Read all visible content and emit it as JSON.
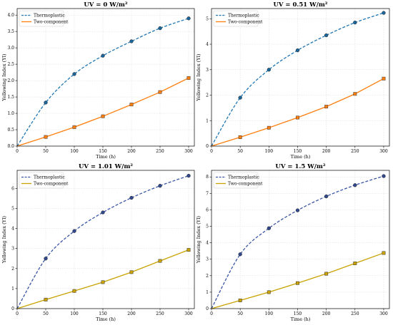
{
  "chart_data": [
    {
      "type": "line",
      "title": "UV = 0 W/m²",
      "xlabel": "Time (h)",
      "ylabel": "Yellowing Index (YI)",
      "xlim": [
        0,
        310
      ],
      "ylim": [
        0,
        4.2
      ],
      "xticks": [
        0,
        50,
        100,
        150,
        200,
        250,
        300
      ],
      "yticks": [
        0,
        0.5,
        1.0,
        1.5,
        2.0,
        2.5,
        3.0,
        3.5,
        4.0
      ],
      "ytick_labels": [
        "0.0",
        "0.5",
        "1.0",
        "1.5",
        "2.0",
        "2.5",
        "3.0",
        "3.5",
        "4.0"
      ],
      "legend": "top-left",
      "grid": true,
      "series": [
        {
          "name": "Thermoplastic",
          "color": "#1f77b4",
          "marker": "circle",
          "style": "dashed",
          "x": [
            0,
            50,
            100,
            150,
            200,
            250,
            300
          ],
          "values": [
            0,
            1.33,
            2.2,
            2.76,
            3.2,
            3.6,
            3.9
          ]
        },
        {
          "name": "Two-component",
          "color": "#ff7f0e",
          "marker": "square",
          "style": "solid",
          "x": [
            0,
            50,
            100,
            150,
            200,
            250,
            300
          ],
          "values": [
            0,
            0.28,
            0.58,
            0.91,
            1.27,
            1.65,
            2.08
          ]
        }
      ]
    },
    {
      "type": "line",
      "title": "UV = 0.51 W/m²",
      "xlabel": "Time (h)",
      "ylabel": "Yellowing Index (YI)",
      "xlim": [
        0,
        310
      ],
      "ylim": [
        0,
        5.4
      ],
      "xticks": [
        0,
        50,
        100,
        150,
        200,
        250,
        300
      ],
      "yticks": [
        0,
        1,
        2,
        3,
        4,
        5
      ],
      "ytick_labels": [
        "0",
        "1",
        "2",
        "3",
        "4",
        "5"
      ],
      "legend": "top-left",
      "grid": true,
      "series": [
        {
          "name": "Thermoplastic",
          "color": "#1f77b4",
          "marker": "circle",
          "style": "dashed",
          "x": [
            0,
            50,
            100,
            150,
            200,
            250,
            300
          ],
          "values": [
            0,
            1.9,
            3.0,
            3.76,
            4.35,
            4.85,
            5.23
          ]
        },
        {
          "name": "Two-component",
          "color": "#ff7f0e",
          "marker": "square",
          "style": "solid",
          "x": [
            0,
            50,
            100,
            150,
            200,
            250,
            300
          ],
          "values": [
            0,
            0.35,
            0.72,
            1.12,
            1.55,
            2.05,
            2.65
          ]
        }
      ]
    },
    {
      "type": "line",
      "title": "UV = 1.01 W/m²",
      "xlabel": "Time (h)",
      "ylabel": "Yellowing Index (YI)",
      "xlim": [
        0,
        310
      ],
      "ylim": [
        0,
        6.9
      ],
      "xticks": [
        0,
        50,
        100,
        150,
        200,
        250,
        300
      ],
      "yticks": [
        0,
        1,
        2,
        3,
        4,
        5,
        6
      ],
      "ytick_labels": [
        "0",
        "1",
        "2",
        "3",
        "4",
        "5",
        "6"
      ],
      "legend": "top-left",
      "grid": true,
      "series": [
        {
          "name": "Thermoplastic",
          "color": "#3a55a6",
          "marker": "circle",
          "style": "dashed",
          "x": [
            0,
            50,
            100,
            150,
            200,
            250,
            300
          ],
          "values": [
            0,
            2.5,
            3.87,
            4.8,
            5.53,
            6.13,
            6.63
          ]
        },
        {
          "name": "Two-component",
          "color": "#c9a200",
          "marker": "square",
          "style": "solid",
          "x": [
            0,
            50,
            100,
            150,
            200,
            250,
            300
          ],
          "values": [
            0,
            0.45,
            0.88,
            1.32,
            1.82,
            2.38,
            2.93
          ]
        }
      ]
    },
    {
      "type": "line",
      "title": "UV = 1.5 W/m²",
      "xlabel": "Time (h)",
      "ylabel": "Yellowing Index (YI)",
      "xlim": [
        0,
        310
      ],
      "ylim": [
        0,
        8.4
      ],
      "xticks": [
        0,
        50,
        100,
        150,
        200,
        250,
        300
      ],
      "yticks": [
        0,
        1,
        2,
        3,
        4,
        5,
        6,
        7,
        8
      ],
      "ytick_labels": [
        "0",
        "1",
        "2",
        "3",
        "4",
        "5",
        "6",
        "7",
        "8"
      ],
      "legend": "top-left",
      "grid": true,
      "series": [
        {
          "name": "Thermoplastic",
          "color": "#3a55a6",
          "marker": "circle",
          "style": "dashed",
          "x": [
            0,
            50,
            100,
            150,
            200,
            250,
            300
          ],
          "values": [
            0,
            3.3,
            4.88,
            5.97,
            6.82,
            7.5,
            8.05
          ]
        },
        {
          "name": "Two-component",
          "color": "#c9a200",
          "marker": "square",
          "style": "solid",
          "x": [
            0,
            50,
            100,
            150,
            200,
            250,
            300
          ],
          "values": [
            0,
            0.5,
            1.0,
            1.55,
            2.12,
            2.75,
            3.38
          ]
        }
      ]
    }
  ]
}
